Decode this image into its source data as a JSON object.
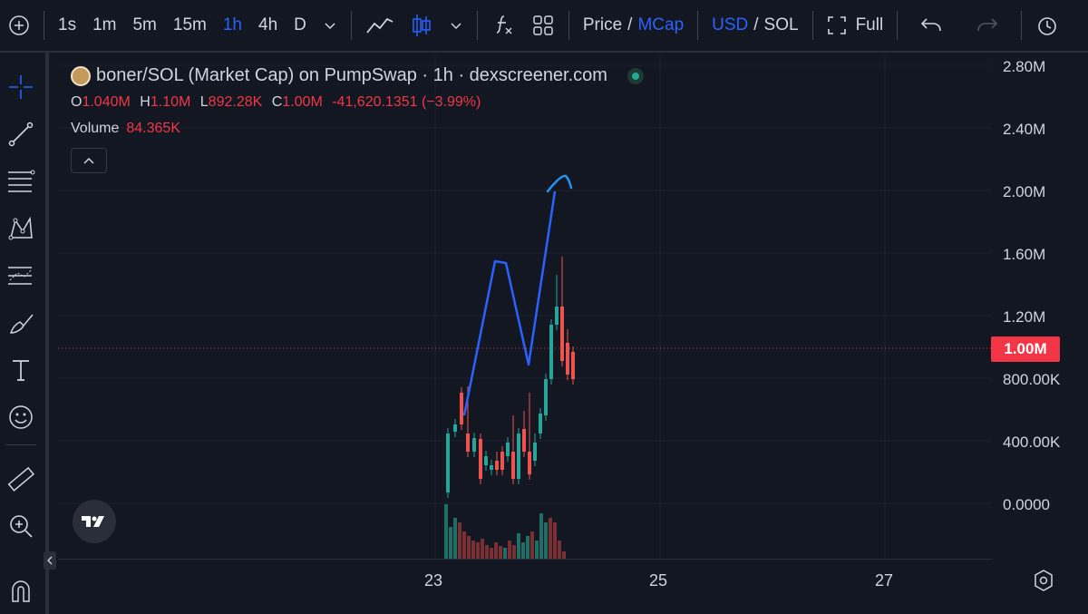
{
  "toolbar": {
    "intervals": [
      "1s",
      "1m",
      "5m",
      "15m",
      "1h",
      "4h",
      "D"
    ],
    "active_interval": "1h",
    "price_label": "Price",
    "slash": "/",
    "mcap_label": "MCap",
    "usd_label": "USD",
    "sol_label": "SOL",
    "full_label": "Full"
  },
  "legend": {
    "title": "boner/SOL (Market Cap) on PumpSwap · 1h · dexscreener.com",
    "o_key": "O",
    "o_val": "1.040M",
    "h_key": "H",
    "h_val": "1.10M",
    "l_key": "L",
    "l_val": "892.28K",
    "c_key": "C",
    "c_val": "1.00M",
    "change": "-41,620.1351 (−3.99%)",
    "volume_label": "Volume",
    "volume_value": "84.365K"
  },
  "price_axis": {
    "labels": [
      "2.80M",
      "2.40M",
      "2.00M",
      "1.60M",
      "1.20M",
      "800.00K",
      "400.00K",
      "0.0000"
    ],
    "current_price": "1.00M"
  },
  "time_axis": {
    "labels": [
      "23",
      "25",
      "27"
    ]
  },
  "colors": {
    "up": "#26a69a",
    "down": "#ef5350",
    "accent": "#2962ff",
    "bg": "#131722",
    "price_tag": "#f23645"
  },
  "icons": [
    "crosshair-icon",
    "trendline-icon",
    "fib-icon",
    "pattern-icon",
    "forecast-icon",
    "brush-icon",
    "text-icon",
    "emoji-icon",
    "ruler-icon",
    "zoom-icon",
    "magnet-icon"
  ]
}
